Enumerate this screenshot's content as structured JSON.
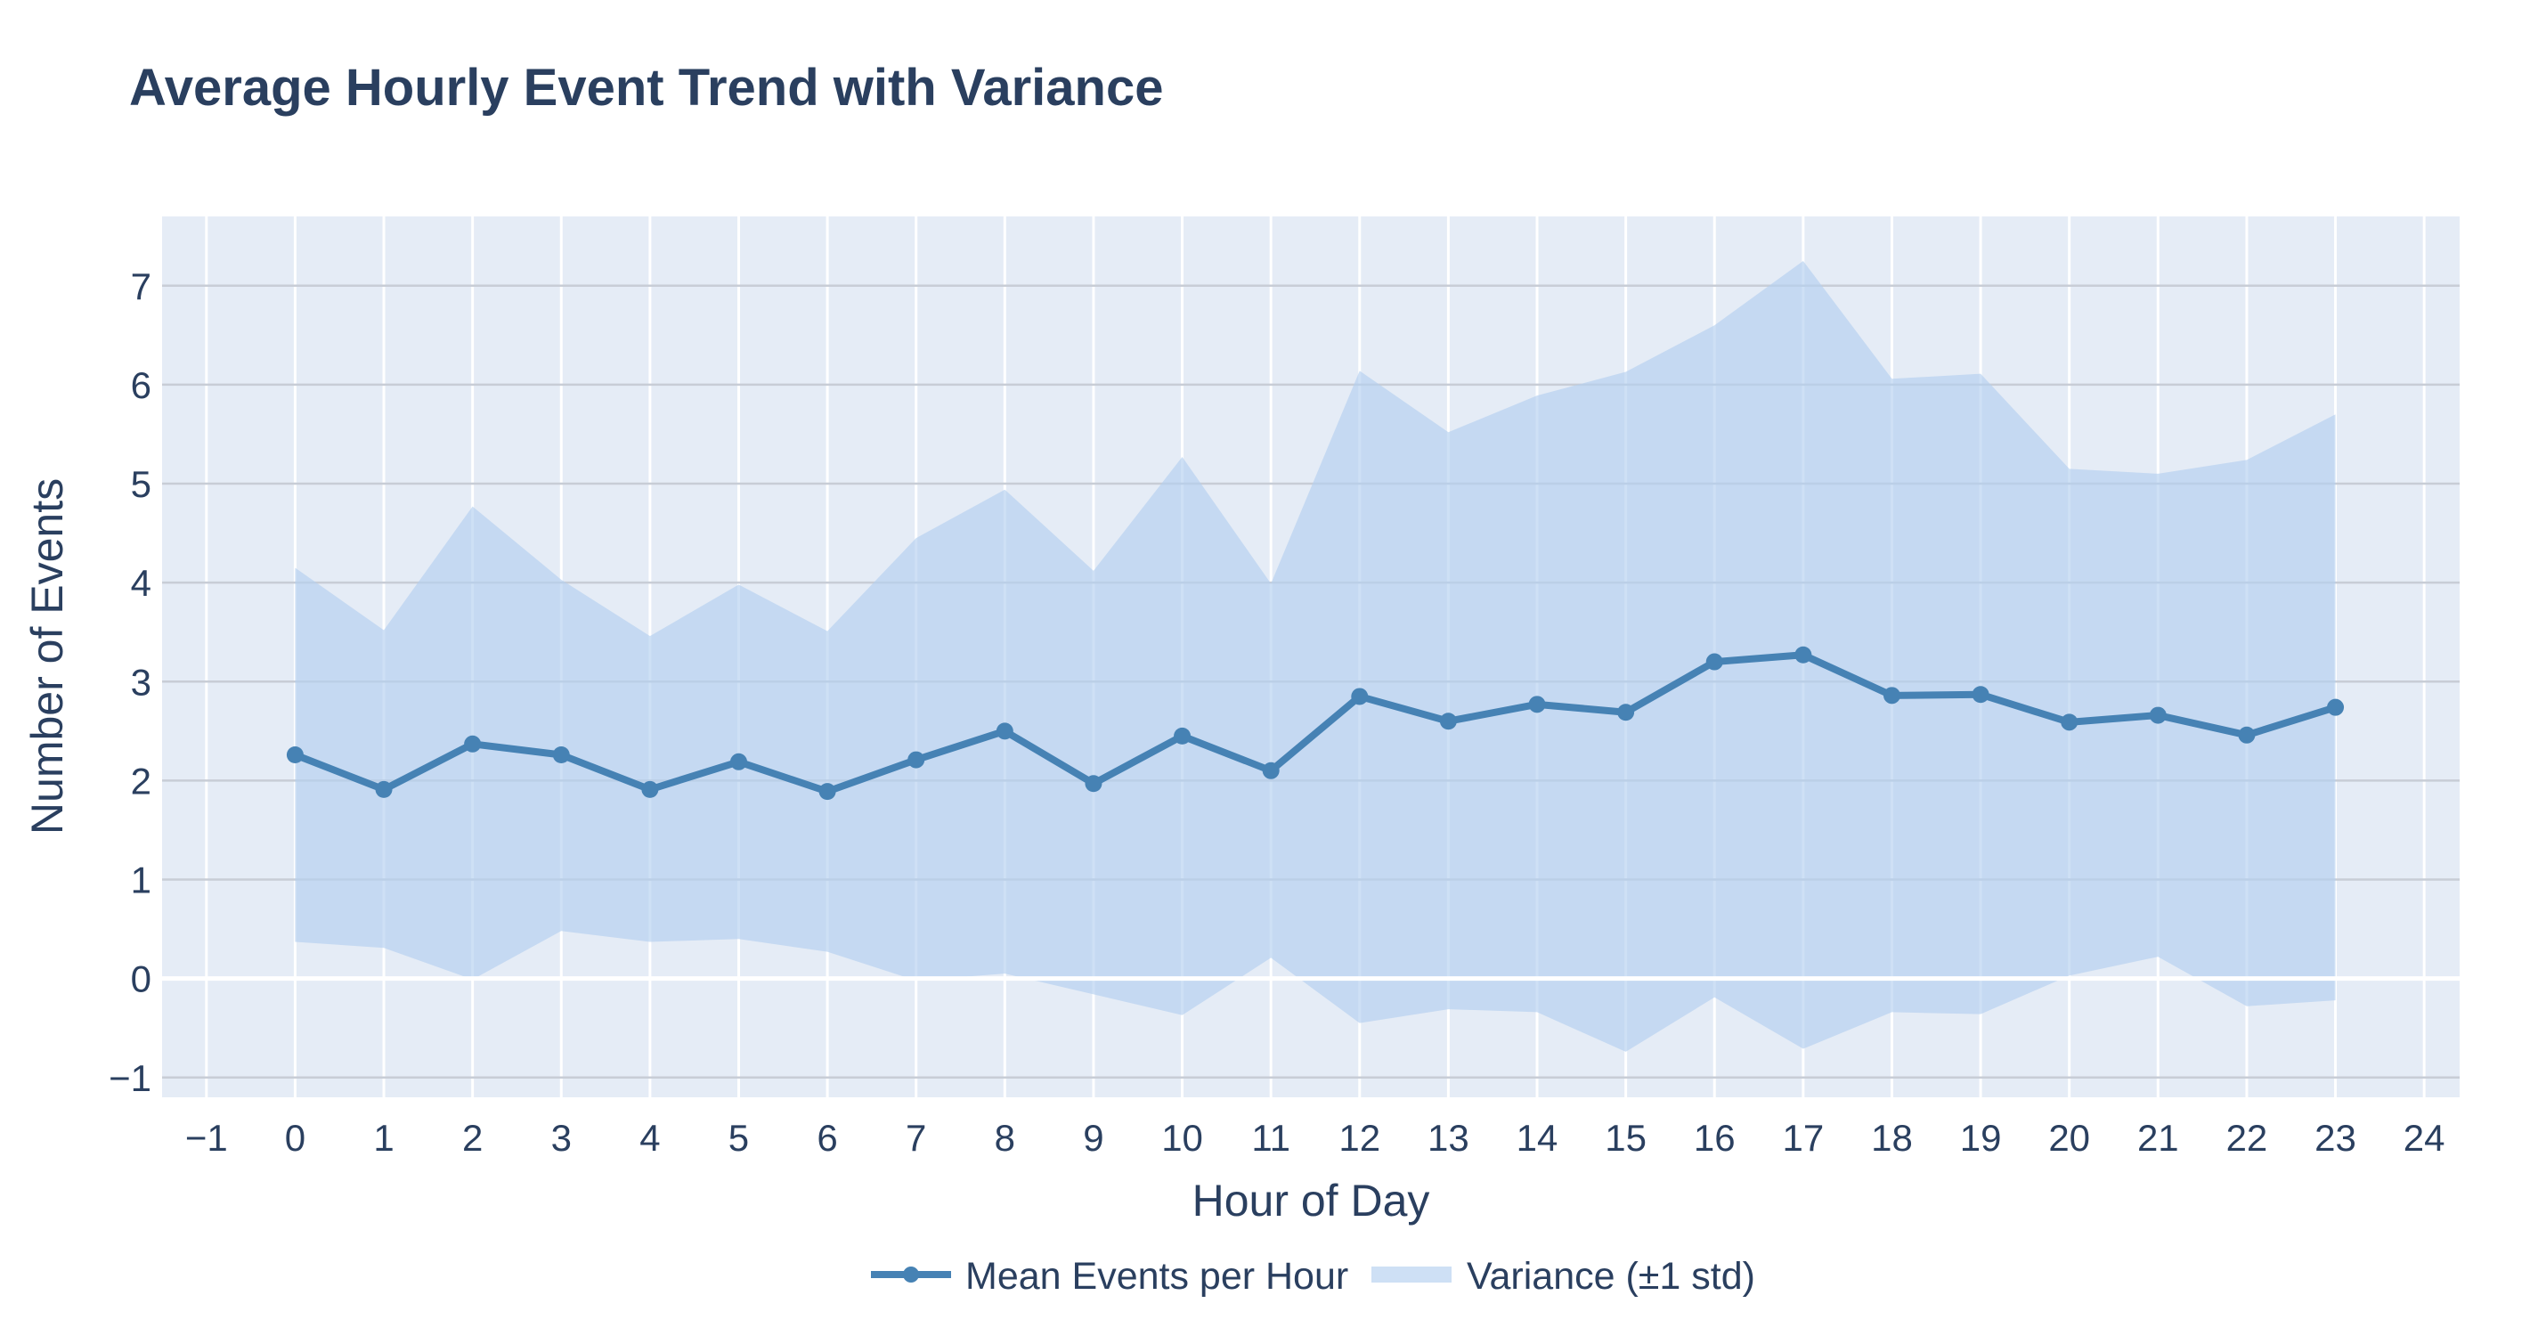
{
  "chart_data": {
    "type": "line",
    "title": "Average Hourly Event Trend with Variance",
    "xlabel": "Hour of Day",
    "ylabel": "Number of Events",
    "xlim": [
      -1.5,
      24.4
    ],
    "ylim": [
      -1.2,
      7.7
    ],
    "xticks": [
      -1,
      0,
      1,
      2,
      3,
      4,
      5,
      6,
      7,
      8,
      9,
      10,
      11,
      12,
      13,
      14,
      15,
      16,
      17,
      18,
      19,
      20,
      21,
      22,
      23,
      24
    ],
    "xtick_labels": [
      "−1",
      "0",
      "1",
      "2",
      "3",
      "4",
      "5",
      "6",
      "7",
      "8",
      "9",
      "10",
      "11",
      "12",
      "13",
      "14",
      "15",
      "16",
      "17",
      "18",
      "19",
      "20",
      "21",
      "22",
      "23",
      "24"
    ],
    "yticks": [
      -1,
      0,
      1,
      2,
      3,
      4,
      5,
      6,
      7
    ],
    "ytick_labels": [
      "−1",
      "0",
      "1",
      "2",
      "3",
      "4",
      "5",
      "6",
      "7"
    ],
    "grid": true,
    "legend_position": "bottom-center",
    "x": [
      0,
      1,
      2,
      3,
      4,
      5,
      6,
      7,
      8,
      9,
      10,
      11,
      12,
      13,
      14,
      15,
      16,
      17,
      18,
      19,
      20,
      21,
      22,
      23
    ],
    "series": [
      {
        "name": "Mean Events per Hour",
        "kind": "line+markers",
        "values": [
          2.26,
          1.91,
          2.37,
          2.26,
          1.91,
          2.19,
          1.89,
          2.21,
          2.5,
          1.97,
          2.45,
          2.1,
          2.85,
          2.6,
          2.77,
          2.69,
          3.2,
          3.27,
          2.86,
          2.87,
          2.59,
          2.66,
          2.46,
          2.74
        ]
      },
      {
        "name": "Variance (±1 std)",
        "kind": "band",
        "upper": [
          4.15,
          3.52,
          4.77,
          4.03,
          3.46,
          3.98,
          3.51,
          4.45,
          4.94,
          4.12,
          5.27,
          3.99,
          6.14,
          5.52,
          5.89,
          6.13,
          6.6,
          7.25,
          6.06,
          6.11,
          5.15,
          5.1,
          5.24,
          5.7
        ],
        "lower": [
          0.37,
          0.31,
          -0.01,
          0.48,
          0.37,
          0.4,
          0.27,
          -0.02,
          0.05,
          -0.16,
          -0.37,
          0.21,
          -0.45,
          -0.31,
          -0.34,
          -0.74,
          -0.19,
          -0.71,
          -0.34,
          -0.36,
          0.03,
          0.22,
          -0.28,
          -0.22
        ]
      }
    ],
    "colors": {
      "line": "#4682b4",
      "band": "#b4cff0",
      "plot_bg": "#e5ecf6",
      "grid_x": "#ffffff",
      "grid_y": "#c8cdd6",
      "text": "#2a3f5f"
    }
  }
}
